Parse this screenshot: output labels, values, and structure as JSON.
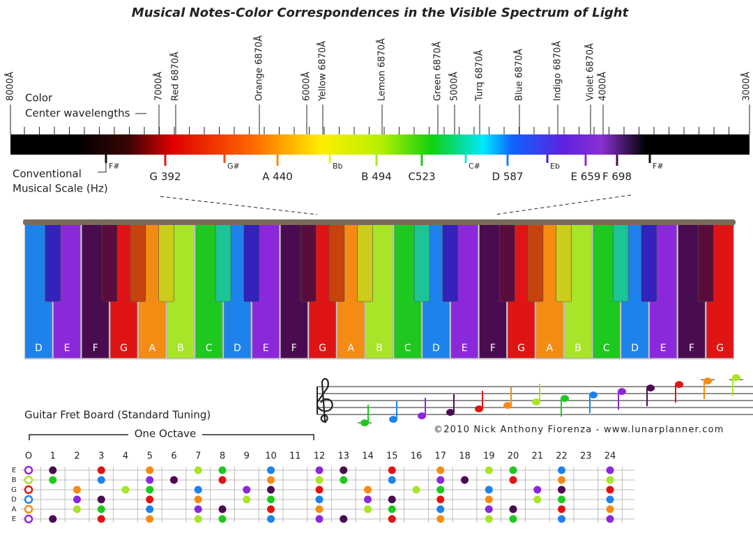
{
  "title": "Musical Notes-Color Correspondences in the Visible Spectrum of Light",
  "spectrum": {
    "wavelengths": [
      "8000Å",
      "7000Å",
      "Red 6870Å",
      "Orange 6870Å",
      "6000Å",
      "Yellow 6870Å",
      "Lemon 6870Å",
      "Green 6870Å",
      "5000Å",
      "Turq 6870Å",
      "Blue 6870Å",
      "Indigo 6870Å",
      "Violet 6870Å",
      "4000Å",
      "3000Å"
    ],
    "color_label": "Color",
    "center_label": "Center wavelengths",
    "scale_label": [
      "Conventional",
      "Musical Scale (Hz)"
    ],
    "notes": [
      "F#",
      "G 392",
      "G#",
      "A 440",
      "Bb",
      "B 494",
      "C523",
      "C#",
      "D 587",
      "Eb",
      "E 659",
      "F 698",
      "F#"
    ]
  },
  "note_colors": {
    "C": "#1ec81e",
    "C#": "#20e8b0",
    "D": "#1e82ec",
    "D#": "#3c28dc",
    "E": "#8c28dc",
    "F": "#4a0c50",
    "F#": "#6a1048",
    "G": "#e01414",
    "G#": "#e85010",
    "A": "#f48c14",
    "A#": "#f0f020",
    "B": "#a8e428"
  },
  "keyboard": {
    "white_keys": [
      "D",
      "E",
      "F",
      "G",
      "A",
      "B",
      "C",
      "D",
      "E",
      "F",
      "G",
      "A",
      "B",
      "C",
      "D",
      "E",
      "F",
      "G",
      "A",
      "B",
      "C",
      "D",
      "E",
      "F",
      "G"
    ]
  },
  "staff": {
    "credit": "©2010 Nick Anthony Fiorenza - www.lunarplanner.com"
  },
  "fretboard": {
    "title": "Guitar Fret Board (Standard Tuning)",
    "octave_label": "One Octave",
    "frets": [
      "O",
      "1",
      "2",
      "3",
      "4",
      "5",
      "6",
      "7",
      "8",
      "9",
      "10",
      "11",
      "12",
      "13",
      "14",
      "15",
      "16",
      "17",
      "18",
      "19",
      "20",
      "21",
      "22",
      "23",
      "24"
    ],
    "strings": [
      "E",
      "B",
      "G",
      "D",
      "A",
      "E"
    ]
  }
}
